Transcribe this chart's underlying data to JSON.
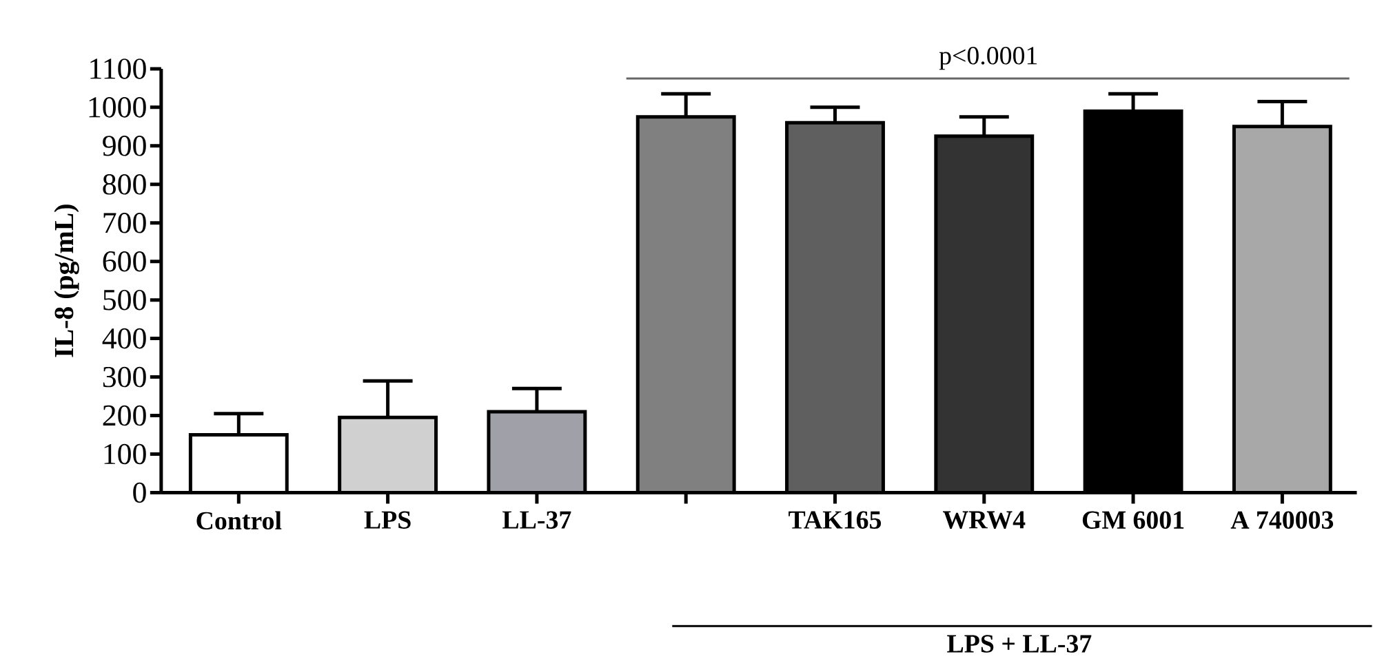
{
  "chart_data": {
    "type": "bar",
    "ylabel": "IL-8 (pg/mL)",
    "categories": [
      "Control",
      "LPS",
      "LL-37",
      null,
      "TAK165",
      "WRW4",
      "GM 6001",
      "A 740003"
    ],
    "values": [
      150,
      195,
      210,
      975,
      960,
      925,
      990,
      950
    ],
    "errors": [
      55,
      95,
      60,
      60,
      40,
      50,
      45,
      65
    ],
    "colors": [
      "#ffffff",
      "#d0d0d0",
      "#a0a0a8",
      "#808080",
      "#5f5f5f",
      "#333333",
      "#000000",
      "#a8a8a8"
    ],
    "ylim": [
      0,
      1100
    ],
    "yticks": [
      0,
      100,
      200,
      300,
      400,
      500,
      600,
      700,
      800,
      900,
      1000,
      1100
    ],
    "annotations": [
      "p<0.0001",
      "LPS + LL-37"
    ]
  }
}
